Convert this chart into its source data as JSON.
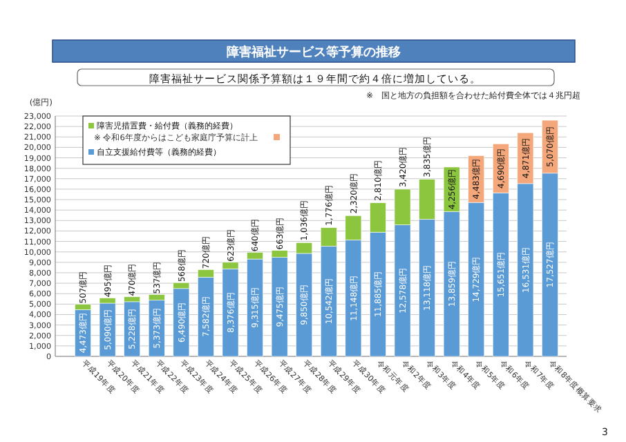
{
  "chart_data": {
    "type": "bar",
    "title": "障害福祉サービス等予算の推移",
    "subtitle": "障害福祉サービス関係予算額は１９年間で約４倍に増加している。",
    "annotations": [
      "※　国と地方の負担額を合わせた給付費全体では４兆円超",
      "※ 令和6年度からはこども家庭庁予算に計上",
      "3"
    ],
    "ylabel": "(億円)",
    "categories": [
      "平成19年度",
      "平成20年度",
      "平成21年度",
      "平成22年度",
      "平成23年度",
      "平成24年度",
      "平成25年度",
      "平成26年度",
      "平成27年度",
      "平成28年度",
      "平成29年度",
      "平成30年度",
      "令和元年度",
      "令和2年度",
      "令和3年度",
      "令和4年度",
      "令和5年度",
      "令和6年度",
      "令和7年度",
      "令和8年度概算要求"
    ],
    "stacked": true,
    "series": [
      {
        "name": "自立支援給付費等（義務的経費）",
        "color": "#5b9bd5",
        "values": [
          4473,
          5090,
          5228,
          5373,
          6490,
          7582,
          8376,
          9315,
          9475,
          9850,
          10542,
          11148,
          11885,
          12578,
          13118,
          13859,
          14729,
          15651,
          16531,
          17527
        ],
        "value_labels": [
          "4,473億円",
          "5,090億円",
          "5,228億円",
          "5,373億円",
          "6,490億円",
          "7,582億円",
          "8,376億円",
          "9,315億円",
          "9,475億円",
          "9,850億円",
          "10,542億円",
          "11,148億円",
          "11,885億円",
          "12,578億円",
          "13,118億円",
          "13,859億円",
          "14,729億円",
          "15,651億円",
          "16,531億円",
          "17,527億円"
        ]
      },
      {
        "name": "障害児措置費・給付費（義務的経費）",
        "color": "#8cc63f",
        "colors": [
          "#8cc63f",
          "#8cc63f",
          "#8cc63f",
          "#8cc63f",
          "#8cc63f",
          "#8cc63f",
          "#8cc63f",
          "#8cc63f",
          "#8cc63f",
          "#8cc63f",
          "#8cc63f",
          "#8cc63f",
          "#8cc63f",
          "#8cc63f",
          "#8cc63f",
          "#8cc63f",
          "#f4a77a",
          "#f4a77a",
          "#f4a77a",
          "#f4a77a"
        ],
        "values": [
          507,
          495,
          470,
          537,
          568,
          720,
          623,
          640,
          663,
          1036,
          1776,
          2320,
          2810,
          3420,
          3835,
          4256,
          4483,
          4690,
          4871,
          5070
        ],
        "value_labels": [
          "507億円",
          "495億円",
          "470億円",
          "537億円",
          "568億円",
          "720億円",
          "623億円",
          "640億円",
          "663億円",
          "1,036億円",
          "1,776億円",
          "2,320億円",
          "2,810億円",
          "3,420億円",
          "3,835億円",
          "4,256億円",
          "4,483億円",
          "4,690億円",
          "4,871億円",
          "5,070億円"
        ]
      }
    ],
    "ylim": [
      0,
      23000
    ],
    "yticks": [
      {
        "value": 0,
        "label": "0"
      },
      {
        "value": 1000,
        "label": "1,000"
      },
      {
        "value": 2000,
        "label": "2,000"
      },
      {
        "value": 3000,
        "label": "3,000"
      },
      {
        "value": 4000,
        "label": "4,000"
      },
      {
        "value": 5000,
        "label": "5,000"
      },
      {
        "value": 6000,
        "label": "6,000"
      },
      {
        "value": 7000,
        "label": "7,000"
      },
      {
        "value": 8000,
        "label": "8,000"
      },
      {
        "value": 9000,
        "label": "9,000"
      },
      {
        "value": 10000,
        "label": "10,000"
      },
      {
        "value": 11000,
        "label": "11,000"
      },
      {
        "value": 12000,
        "label": "12,000"
      },
      {
        "value": 13000,
        "label": "13,000"
      },
      {
        "value": 14000,
        "label": "14,000"
      },
      {
        "value": 15000,
        "label": "15,000"
      },
      {
        "value": 16000,
        "label": "16,000"
      },
      {
        "value": 17000,
        "label": "17,000"
      },
      {
        "value": 18000,
        "label": "18,000"
      },
      {
        "value": 19000,
        "label": "19,000"
      },
      {
        "value": 20000,
        "label": "20,000"
      },
      {
        "value": 21000,
        "label": "21,000"
      },
      {
        "value": 22000,
        "label": "22,000"
      },
      {
        "value": 23000,
        "label": "23,000"
      }
    ],
    "grid": "y",
    "legend": "top left"
  }
}
